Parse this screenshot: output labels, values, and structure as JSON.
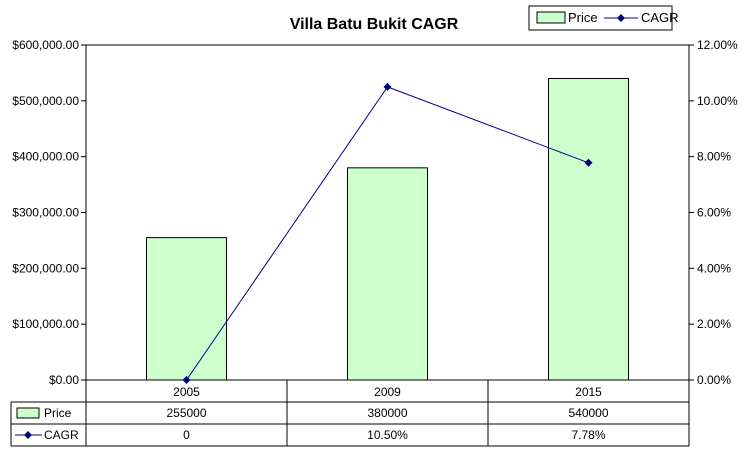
{
  "chart_data": {
    "type": "bar",
    "title": "Villa Batu Bukit CAGR",
    "categories": [
      "2005",
      "2009",
      "2015"
    ],
    "series": [
      {
        "name": "Price",
        "type": "bar",
        "axis": "left",
        "values": [
          255000,
          380000,
          540000
        ],
        "color": "#ccffcc"
      },
      {
        "name": "CAGR",
        "type": "line",
        "axis": "right",
        "values": [
          0,
          10.5,
          7.78
        ],
        "color": "#000080"
      }
    ],
    "left_axis": {
      "ylim": [
        0,
        600000
      ],
      "ticks": [
        0,
        100000,
        200000,
        300000,
        400000,
        500000,
        600000
      ],
      "tick_labels": [
        "$0.00",
        "$100,000.00",
        "$200,000.00",
        "$300,000.00",
        "$400,000.00",
        "$500,000.00",
        "$600,000.00"
      ]
    },
    "right_axis": {
      "ylim": [
        0,
        12
      ],
      "ticks": [
        0,
        2,
        4,
        6,
        8,
        10,
        12
      ],
      "tick_labels": [
        "0.00%",
        "2.00%",
        "4.00%",
        "6.00%",
        "8.00%",
        "10.00%",
        "12.00%"
      ]
    },
    "grid": false,
    "legend": {
      "position": "top-right",
      "entries": [
        "Price",
        "CAGR"
      ]
    },
    "data_table": {
      "rows": [
        {
          "label": "Price",
          "cells": [
            "255000",
            "380000",
            "540000"
          ]
        },
        {
          "label": "CAGR",
          "cells": [
            "0",
            "10.50%",
            "7.78%"
          ]
        }
      ]
    }
  }
}
